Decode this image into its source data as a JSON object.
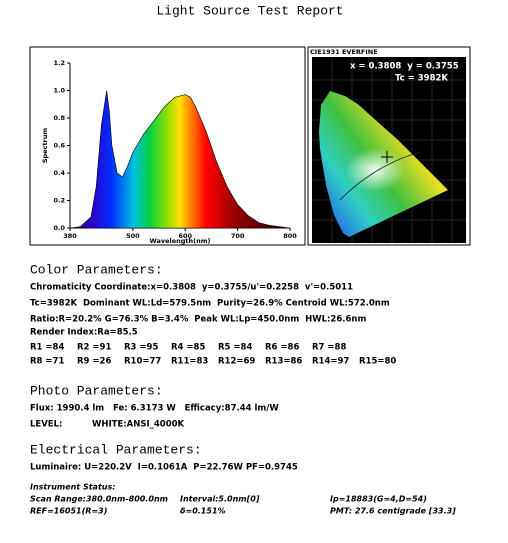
{
  "header": {
    "title": "Light Source Test Report"
  },
  "chart_data": {
    "type": "area",
    "xlabel": "Wavelength(nm)",
    "ylabel": "Spectrum",
    "x": [
      380,
      400,
      420,
      430,
      440,
      450,
      455,
      460,
      470,
      480,
      490,
      500,
      520,
      540,
      560,
      580,
      600,
      610,
      620,
      640,
      660,
      680,
      700,
      720,
      740,
      760,
      780,
      800
    ],
    "values": [
      0,
      0.01,
      0.08,
      0.3,
      0.75,
      1.0,
      0.85,
      0.6,
      0.4,
      0.37,
      0.45,
      0.55,
      0.68,
      0.78,
      0.88,
      0.95,
      0.97,
      0.95,
      0.88,
      0.7,
      0.48,
      0.3,
      0.17,
      0.09,
      0.04,
      0.02,
      0.01,
      0
    ],
    "xlim": [
      380,
      800
    ],
    "xticks": [
      380,
      500,
      600,
      700,
      800
    ],
    "ylim": [
      0,
      1.2
    ],
    "yticks": [
      {
        "value": 0,
        "label": "0.0"
      },
      0.2,
      0.4,
      0.6,
      0.8,
      {
        "value": 1,
        "label": "1.0"
      },
      1.2
    ]
  },
  "cie": {
    "title": "CIE1931 EVERFINE",
    "coords": "x = 0.3808  y = 0.3755",
    "tc": "Tc = 3982K"
  },
  "color_parameters": {
    "heading": "Color Parameters:",
    "lines": [
      "Chromaticity Coordinate:x=0.3808  y=0.3755/u'=0.2258  v'=0.5011",
      "Tc=3982K  Dominant WL:Ld=579.5nm  Purity=26.9% Centroid WL:572.0nm",
      "Ratio:R=20.2% G=76.3% B=3.4%  Peak WL:Lp=450.0nm  HWL:26.6nm",
      "Render Index:Ra=85.5"
    ],
    "render_rows": [
      [
        "R1 =84",
        "R2 =91",
        "R3 =95",
        "R4 =85",
        "R5 =84",
        "R6 =86",
        "R7 =88"
      ],
      [
        "R8 =71",
        "R9 =26",
        "R10=77",
        "R11=83",
        "R12=69",
        "R13=86",
        "R14=97",
        "R15=80"
      ]
    ]
  },
  "photo_parameters": {
    "heading": "Photo Parameters:",
    "lines": [
      "Flux: 1990.4 lm   Fe: 6.3173 W   Efficacy:87.44 lm/W",
      "LEVEL:          WHITE:ANSI_4000K"
    ]
  },
  "electrical_parameters": {
    "heading": "Electrical Parameters:",
    "lines": [
      "Luminaire: U=220.2V  I=0.1061A  P=22.76W PF=0.9745"
    ]
  },
  "instrument_status": {
    "heading": "Instrument Status:",
    "rows": [
      [
        "Scan Range:380.0nm-800.0nm",
        "Interval:5.0nm[0]",
        "Ip=18883(G=4,D=54)"
      ],
      [
        "REF=16051(R=3)",
        "δ=0.151%",
        "PMT: 27.6 centigrade [33.3]"
      ]
    ]
  }
}
